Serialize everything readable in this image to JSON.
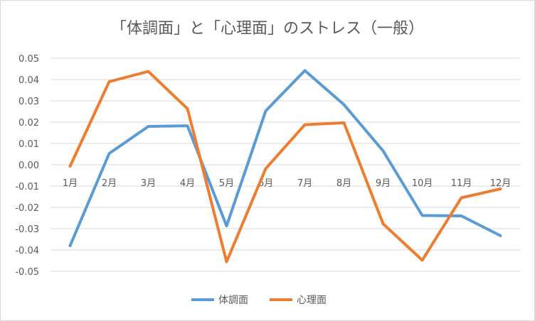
{
  "chart_data": {
    "type": "line",
    "title": "「体調面」と「心理面」のストレス（一般）",
    "categories": [
      "1月",
      "2月",
      "3月",
      "4月",
      "5月",
      "6月",
      "7月",
      "8月",
      "9月",
      "10月",
      "11月",
      "12月"
    ],
    "series": [
      {
        "name": "体調面",
        "color": "#5b9bd5",
        "values": [
          -0.038,
          0.0053,
          0.018,
          0.0183,
          -0.0287,
          0.0253,
          0.0442,
          0.0282,
          0.0065,
          -0.0238,
          -0.024,
          -0.0333
        ]
      },
      {
        "name": "心理面",
        "color": "#ed7d31",
        "values": [
          -0.0007,
          0.039,
          0.0438,
          0.0263,
          -0.0455,
          -0.0018,
          0.0188,
          0.0197,
          -0.0277,
          -0.0448,
          -0.0155,
          -0.0113
        ]
      }
    ],
    "ylim": [
      -0.05,
      0.05
    ],
    "yticks": [
      "-0.05",
      "-0.04",
      "-0.03",
      "-0.02",
      "-0.01",
      "0.00",
      "0.01",
      "0.02",
      "0.03",
      "0.04",
      "0.05"
    ],
    "grid": true,
    "legend": "bottom"
  }
}
